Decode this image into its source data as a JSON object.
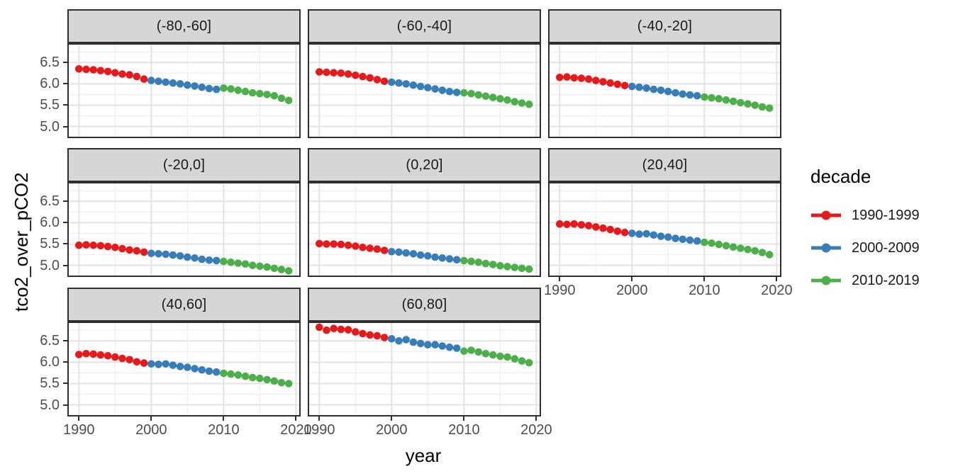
{
  "chart_data": {
    "type": "scatter",
    "title": "",
    "xlabel": "year",
    "ylabel": "tco2_over_pCO2",
    "grid": true,
    "legend_position": "right",
    "facet_layout": {
      "rows": 3,
      "cols": 3,
      "empty_last_cell": true
    },
    "xlim": [
      1988.6,
      2020.45
    ],
    "ylim": [
      4.76,
      6.92
    ],
    "x_ticks": [
      1990,
      2000,
      2010,
      2020
    ],
    "x_tick_labels": [
      "1990",
      "2000",
      "2010",
      "2020"
    ],
    "x_minor_ticks": [
      1995,
      2005,
      2015
    ],
    "y_ticks": [
      5.0,
      5.5,
      6.0,
      6.5
    ],
    "y_tick_labels": [
      "5.0",
      "5.5",
      "6.0",
      "6.5"
    ],
    "y_minor_ticks": [
      5.25,
      5.75,
      6.25,
      6.75
    ],
    "x": [
      1990,
      1991,
      1992,
      1993,
      1994,
      1995,
      1996,
      1997,
      1998,
      1999,
      2000,
      2001,
      2002,
      2003,
      2004,
      2005,
      2006,
      2007,
      2008,
      2009,
      2010,
      2011,
      2012,
      2013,
      2014,
      2015,
      2016,
      2017,
      2018,
      2019
    ],
    "series_by": "decade",
    "decades": [
      {
        "name": "1990-1999",
        "color": "#E41A1C",
        "year_range": [
          1990,
          1999
        ]
      },
      {
        "name": "2000-2009",
        "color": "#377EB8",
        "year_range": [
          2000,
          2009
        ]
      },
      {
        "name": "2010-2019",
        "color": "#4DAF4A",
        "year_range": [
          2010,
          2019
        ]
      }
    ],
    "facets": [
      {
        "label": "(-80,-60]",
        "values": [
          6.35,
          6.34,
          6.33,
          6.31,
          6.29,
          6.26,
          6.23,
          6.21,
          6.17,
          6.11,
          6.08,
          6.06,
          6.04,
          6.02,
          6.0,
          5.97,
          5.95,
          5.92,
          5.89,
          5.87,
          5.9,
          5.88,
          5.85,
          5.82,
          5.79,
          5.77,
          5.75,
          5.72,
          5.66,
          5.61
        ]
      },
      {
        "label": "(-60,-40]",
        "values": [
          6.28,
          6.27,
          6.26,
          6.25,
          6.23,
          6.2,
          6.17,
          6.14,
          6.1,
          6.06,
          6.04,
          6.02,
          6.0,
          5.97,
          5.94,
          5.91,
          5.88,
          5.85,
          5.82,
          5.8,
          5.79,
          5.77,
          5.74,
          5.71,
          5.68,
          5.65,
          5.62,
          5.58,
          5.55,
          5.52
        ]
      },
      {
        "label": "(-40,-20]",
        "values": [
          6.15,
          6.16,
          6.14,
          6.13,
          6.11,
          6.08,
          6.05,
          6.02,
          5.99,
          5.96,
          5.94,
          5.92,
          5.9,
          5.87,
          5.85,
          5.82,
          5.79,
          5.76,
          5.74,
          5.72,
          5.69,
          5.67,
          5.65,
          5.62,
          5.59,
          5.56,
          5.53,
          5.5,
          5.46,
          5.43
        ]
      },
      {
        "label": "(-20,0]",
        "values": [
          5.47,
          5.48,
          5.47,
          5.46,
          5.44,
          5.42,
          5.39,
          5.36,
          5.34,
          5.31,
          5.28,
          5.27,
          5.26,
          5.24,
          5.22,
          5.19,
          5.17,
          5.14,
          5.12,
          5.11,
          5.09,
          5.07,
          5.05,
          5.03,
          5.0,
          4.98,
          4.96,
          4.93,
          4.9,
          4.87
        ]
      },
      {
        "label": "(0,20]",
        "values": [
          5.51,
          5.5,
          5.5,
          5.49,
          5.47,
          5.45,
          5.42,
          5.4,
          5.38,
          5.35,
          5.32,
          5.31,
          5.29,
          5.27,
          5.24,
          5.22,
          5.19,
          5.17,
          5.15,
          5.13,
          5.11,
          5.09,
          5.07,
          5.04,
          5.02,
          4.99,
          4.97,
          4.95,
          4.93,
          4.91
        ]
      },
      {
        "label": "(20,40]",
        "values": [
          5.97,
          5.96,
          5.97,
          5.95,
          5.93,
          5.9,
          5.87,
          5.84,
          5.8,
          5.77,
          5.75,
          5.73,
          5.74,
          5.71,
          5.68,
          5.66,
          5.63,
          5.61,
          5.59,
          5.57,
          5.54,
          5.52,
          5.49,
          5.46,
          5.43,
          5.4,
          5.37,
          5.34,
          5.3,
          5.25
        ]
      },
      {
        "label": "(40,60]",
        "values": [
          6.18,
          6.2,
          6.19,
          6.17,
          6.15,
          6.12,
          6.09,
          6.06,
          6.01,
          5.98,
          5.96,
          5.95,
          5.96,
          5.93,
          5.9,
          5.88,
          5.85,
          5.82,
          5.79,
          5.77,
          5.74,
          5.72,
          5.7,
          5.67,
          5.64,
          5.62,
          5.59,
          5.56,
          5.52,
          5.5
        ]
      },
      {
        "label": "(60,80]",
        "values": [
          6.82,
          6.75,
          6.79,
          6.77,
          6.76,
          6.71,
          6.67,
          6.64,
          6.62,
          6.58,
          6.55,
          6.5,
          6.53,
          6.47,
          6.44,
          6.41,
          6.41,
          6.38,
          6.35,
          6.33,
          6.26,
          6.28,
          6.24,
          6.2,
          6.17,
          6.14,
          6.12,
          6.08,
          6.03,
          5.99
        ]
      }
    ]
  },
  "legend": {
    "title": "decade",
    "items": [
      {
        "label": "1990-1999",
        "color": "#E41A1C"
      },
      {
        "label": "2000-2009",
        "color": "#377EB8"
      },
      {
        "label": "2010-2019",
        "color": "#4DAF4A"
      }
    ]
  },
  "colors": {
    "strip_bg": "#d6d6d6",
    "panel_border": "#2f2f2f",
    "grid_major": "#e3e3e3",
    "grid_minor": "#efefef",
    "tick_text": "#4d4d4d"
  }
}
